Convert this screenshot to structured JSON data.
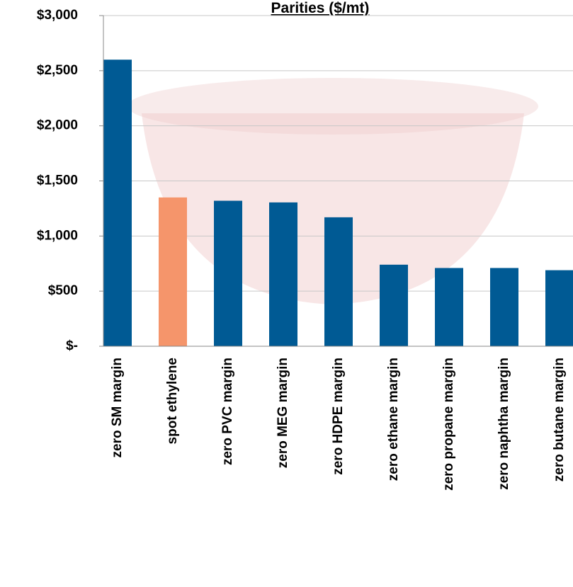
{
  "chart_data": {
    "type": "bar",
    "title": "Parities ($/mt)",
    "categories": [
      "zero SM margin",
      "spot ethylene",
      "zero PVC margin",
      "zero MEG margin",
      "zero HDPE margin",
      "zero ethane margin",
      "zero propane margin",
      "zero naphtha margin",
      "zero butane margin"
    ],
    "values": [
      2600,
      1350,
      1320,
      1305,
      1170,
      740,
      710,
      710,
      690
    ],
    "colors": [
      "#005a94",
      "#f5956b",
      "#005a94",
      "#005a94",
      "#005a94",
      "#005a94",
      "#005a94",
      "#005a94",
      "#005a94"
    ],
    "ylim": [
      0,
      3000
    ],
    "yticks": [
      {
        "value": 0,
        "label": "$-"
      },
      {
        "value": 500,
        "label": "$500"
      },
      {
        "value": 1000,
        "label": "$1,000"
      },
      {
        "value": 1500,
        "label": "$1,500"
      },
      {
        "value": 2000,
        "label": "$2,000"
      },
      {
        "value": 2500,
        "label": "$2,500"
      },
      {
        "value": 3000,
        "label": "$3,000"
      }
    ],
    "grid": true
  }
}
